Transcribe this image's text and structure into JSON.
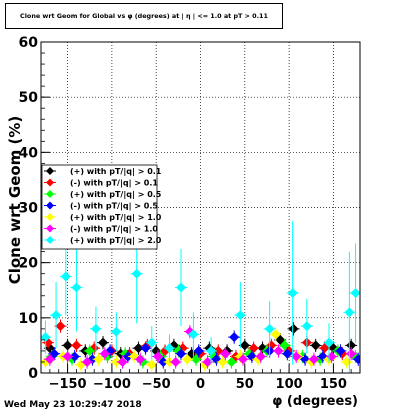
{
  "chart_data": {
    "type": "scatter",
    "title": "Clone wrt Geom for Global vs φ (degrees) at | η | <= 1.0 at pT > 0.11",
    "xlabel": "φ (degrees)",
    "ylabel": "Clone wrt Geom (%)",
    "xlim": [
      -180,
      180
    ],
    "ylim": [
      0,
      60
    ],
    "x_ticks": [
      -150,
      -100,
      -50,
      0,
      50,
      100,
      150
    ],
    "y_ticks": [
      0,
      10,
      20,
      30,
      40,
      50,
      60
    ],
    "grid": true,
    "legend_position": "center-left",
    "series": [
      {
        "name": "(+) with pT/|q| > 0.1",
        "color": "#000000",
        "marker": "diamond",
        "x": [
          -170,
          -150,
          -130,
          -110,
          -90,
          -70,
          -50,
          -30,
          -10,
          10,
          30,
          50,
          70,
          90,
          105,
          130,
          150,
          170
        ],
        "y": [
          4.5,
          5.0,
          4.0,
          5.5,
          3.5,
          4.5,
          4.0,
          5.0,
          3.5,
          4.5,
          4.0,
          5.0,
          4.5,
          6.0,
          8.0,
          5.0,
          4.5,
          5.0
        ]
      },
      {
        "name": "(-) with pT/|q| > 0.1",
        "color": "#ff0000",
        "marker": "diamond",
        "x": [
          -172,
          -158,
          -140,
          -120,
          -100,
          -80,
          -60,
          -40,
          -20,
          0,
          20,
          40,
          60,
          80,
          100,
          120,
          140,
          160
        ],
        "y": [
          5.5,
          8.5,
          5.0,
          4.5,
          4.0,
          3.5,
          5.0,
          4.0,
          4.5,
          3.5,
          4.0,
          3.0,
          4.5,
          5.0,
          4.0,
          5.5,
          4.5,
          3.5
        ]
      },
      {
        "name": "(+) with pT/|q| > 0.5",
        "color": "#00ff00",
        "marker": "diamond",
        "x": [
          -168,
          -145,
          -125,
          -105,
          -85,
          -65,
          -45,
          -25,
          -5,
          15,
          35,
          55,
          75,
          95,
          115,
          135,
          155,
          175
        ],
        "y": [
          3.0,
          2.5,
          4.0,
          3.0,
          3.5,
          2.0,
          3.0,
          4.0,
          2.5,
          3.0,
          2.0,
          3.5,
          4.0,
          5.0,
          3.0,
          2.5,
          4.0,
          3.0
        ]
      },
      {
        "name": "(-) with pT/|q| > 0.5",
        "color": "#0000ff",
        "marker": "diamond",
        "x": [
          -165,
          -142,
          -122,
          -102,
          -82,
          -62,
          -42,
          -22,
          -2,
          18,
          38,
          58,
          78,
          98,
          118,
          138,
          158,
          178
        ],
        "y": [
          3.5,
          3.0,
          2.5,
          4.0,
          3.0,
          4.5,
          2.0,
          3.5,
          4.0,
          2.5,
          6.5,
          3.0,
          4.0,
          3.5,
          2.5,
          3.0,
          4.0,
          2.5
        ]
      },
      {
        "name": "(+) with pT/|q| > 1.0",
        "color": "#ffff00",
        "marker": "diamond",
        "x": [
          -175,
          -155,
          -135,
          -115,
          -95,
          -75,
          -55,
          -35,
          -15,
          5,
          25,
          45,
          65,
          85,
          110,
          125,
          145,
          165
        ],
        "y": [
          2.0,
          3.0,
          1.5,
          2.5,
          2.0,
          3.0,
          1.5,
          2.0,
          2.5,
          1.5,
          2.0,
          3.0,
          2.5,
          7.0,
          3.0,
          2.0,
          2.5,
          2.0
        ]
      },
      {
        "name": "(-) with pT/|q| > 1.0",
        "color": "#ff00ff",
        "marker": "diamond",
        "x": [
          -170,
          -150,
          -128,
          -108,
          -88,
          -68,
          -48,
          -28,
          -12,
          8,
          28,
          48,
          68,
          88,
          108,
          128,
          148,
          170
        ],
        "y": [
          2.5,
          3.0,
          2.0,
          3.5,
          2.0,
          2.5,
          3.0,
          2.0,
          7.5,
          2.0,
          3.5,
          2.5,
          3.0,
          4.0,
          3.0,
          2.5,
          3.0,
          3.5
        ]
      },
      {
        "name": "(+) with pT/|q| > 2.0",
        "color": "#00ffff",
        "marker": "diamond",
        "x": [
          -175,
          -163,
          -152,
          -140,
          -118,
          -95,
          -72,
          -55,
          -35,
          -22,
          -8,
          12,
          45,
          78,
          104,
          120,
          145,
          168,
          175
        ],
        "y": [
          6.5,
          10.5,
          17.5,
          15.5,
          8.0,
          7.5,
          18.0,
          5.5,
          4.5,
          15.5,
          7.0,
          4.0,
          10.5,
          8.0,
          14.5,
          8.5,
          5.5,
          11.0,
          14.5
        ],
        "err": [
          3.0,
          6.0,
          7.0,
          8.0,
          4.0,
          3.5,
          9.0,
          3.0,
          2.5,
          7.0,
          4.0,
          2.5,
          6.0,
          5.0,
          13.0,
          5.0,
          3.5,
          11.0,
          9.0
        ]
      }
    ],
    "footer": "Wed May 23 10:29:47 2018"
  }
}
